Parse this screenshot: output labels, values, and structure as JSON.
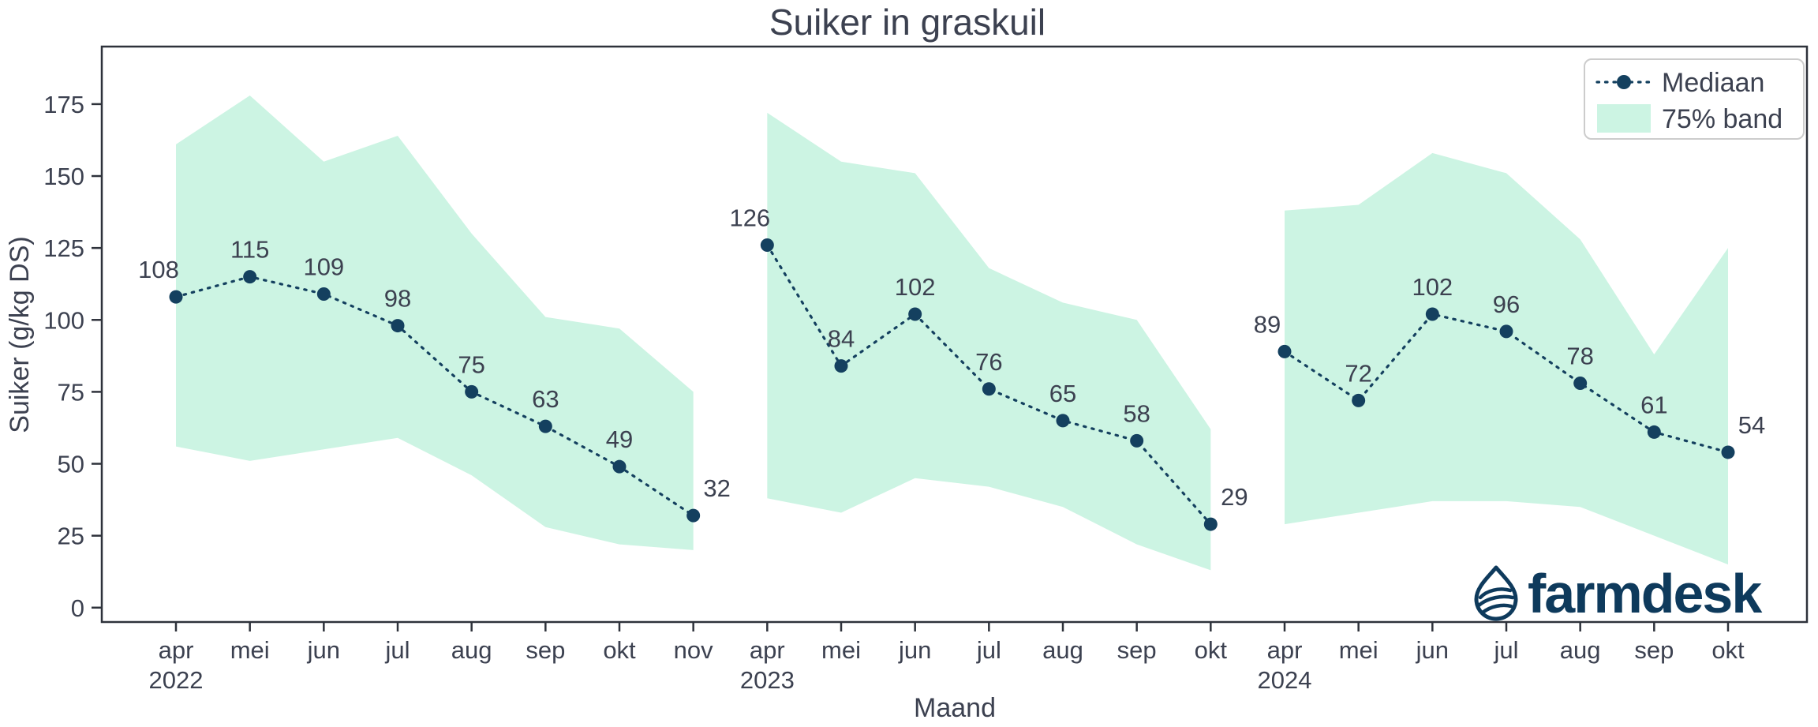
{
  "chart": {
    "title": "Suiker in graskuil",
    "ylabel": "Suiker (g/kg DS)",
    "xlabel": "Maand",
    "legend": {
      "median_label": "Mediaan",
      "band_label": "75% band"
    },
    "colors": {
      "band": "#ccf4e3",
      "line": "#14405f",
      "text": "#3c4150",
      "spine": "#2e323b",
      "legend_border": "#cccccc",
      "logo": "#0e3a5c",
      "background": "#ffffff"
    }
  },
  "branding": {
    "logo_text": "farmdesk"
  },
  "chart_data": {
    "type": "line",
    "title": "Suiker in graskuil",
    "xlabel": "Maand",
    "ylabel": "Suiker (g/kg DS)",
    "ylim": [
      -5,
      195
    ],
    "yticks": [
      0,
      25,
      50,
      75,
      100,
      125,
      150,
      175
    ],
    "grid": false,
    "legend": [
      "Mediaan",
      "75% band"
    ],
    "legend_position": "upper right",
    "series_style": "dotted median line with circular markers and value labels; shaded 75% quantile band per year group",
    "groups": [
      {
        "year": "2022",
        "months": [
          "apr",
          "mei",
          "jun",
          "jul",
          "aug",
          "sep",
          "okt",
          "nov"
        ],
        "median": [
          108,
          115,
          109,
          98,
          75,
          63,
          49,
          32
        ],
        "upper": [
          161,
          178,
          155,
          164,
          130,
          101,
          97,
          75
        ],
        "lower": [
          56,
          51,
          55,
          59,
          46,
          28,
          22,
          20
        ]
      },
      {
        "year": "2023",
        "months": [
          "apr",
          "mei",
          "jun",
          "jul",
          "aug",
          "sep",
          "okt"
        ],
        "median": [
          126,
          84,
          102,
          76,
          65,
          58,
          29
        ],
        "upper": [
          172,
          155,
          151,
          118,
          106,
          100,
          62
        ],
        "lower": [
          38,
          33,
          45,
          42,
          35,
          22,
          13
        ]
      },
      {
        "year": "2024",
        "months": [
          "apr",
          "mei",
          "jun",
          "jul",
          "aug",
          "sep",
          "okt"
        ],
        "median": [
          89,
          72,
          102,
          96,
          78,
          61,
          54
        ],
        "upper": [
          138,
          140,
          158,
          151,
          128,
          88,
          125
        ],
        "lower": [
          29,
          33,
          37,
          37,
          35,
          25,
          15
        ]
      }
    ]
  }
}
